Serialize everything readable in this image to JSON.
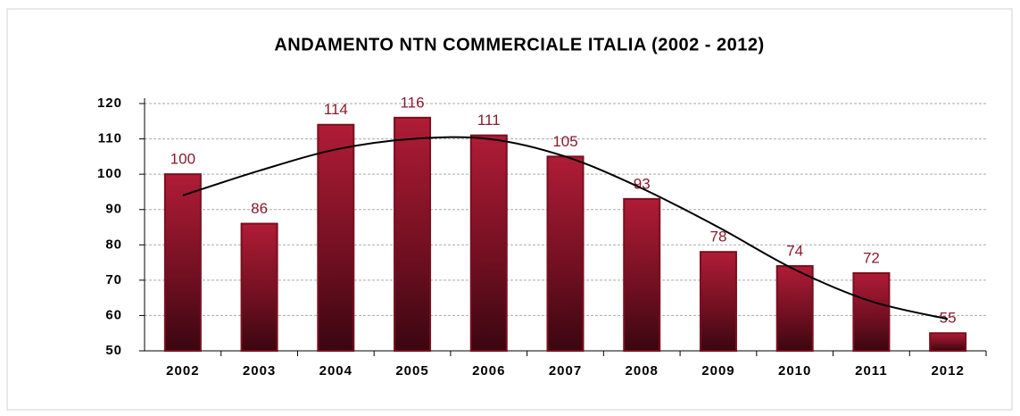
{
  "chart_data": {
    "type": "bar",
    "title": "ANDAMENTO NTN COMMERCIALE ITALIA  (2002 - 2012)",
    "categories": [
      "2002",
      "2003",
      "2004",
      "2005",
      "2006",
      "2007",
      "2008",
      "2009",
      "2010",
      "2011",
      "2012"
    ],
    "values": [
      100,
      86,
      114,
      116,
      111,
      105,
      93,
      78,
      74,
      72,
      55
    ],
    "color": "#a3172f",
    "trend_values": [
      94,
      101,
      107,
      110,
      110,
      105,
      96,
      85,
      73,
      64,
      59
    ],
    "trend_color": "#000000",
    "ylim": [
      50,
      120
    ],
    "yticks": [
      50,
      60,
      70,
      80,
      90,
      100,
      110,
      120
    ],
    "grid": true
  }
}
